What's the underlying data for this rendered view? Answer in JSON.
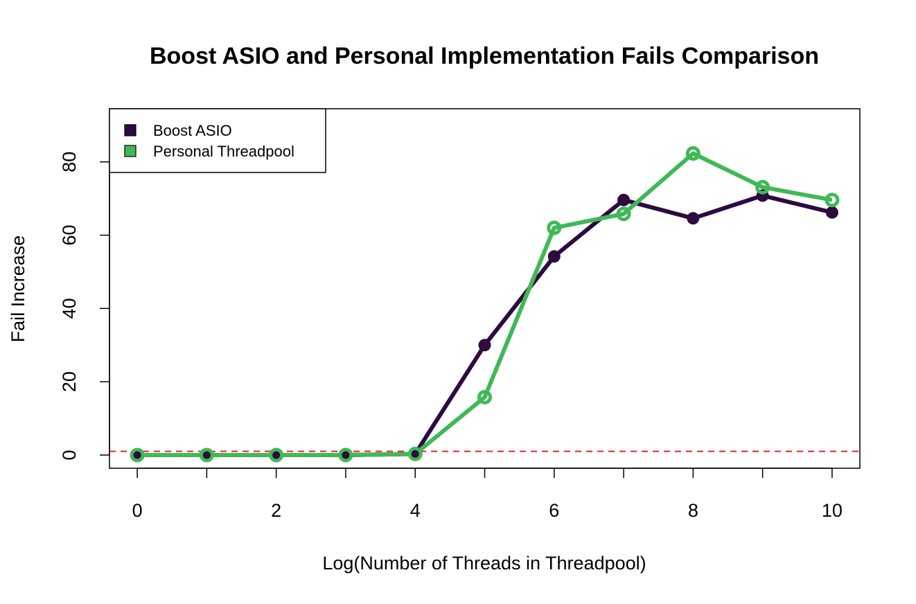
{
  "chart_data": {
    "type": "line",
    "title": "Boost ASIO and Personal Implementation Fails Comparison",
    "xlabel": "Log(Number of Threads in Threadpool)",
    "ylabel": "Fail Increase",
    "xlim": [
      -0.4,
      10.4
    ],
    "ylim": [
      -3.6,
      94.5
    ],
    "x_ticks": [
      0,
      2,
      4,
      6,
      8,
      10
    ],
    "y_ticks": [
      0,
      20,
      40,
      60,
      80
    ],
    "grid": false,
    "legend_position": "top-left",
    "reference_line": {
      "y": 1,
      "style": "dashed",
      "color": "#e8202a"
    },
    "x": [
      0,
      1,
      2,
      3,
      4,
      5,
      6,
      7,
      8,
      9,
      10
    ],
    "series": [
      {
        "name": "Boost ASIO",
        "color": "#2d0a3f",
        "marker": "filled-circle",
        "values": [
          0,
          0,
          0,
          0,
          0.3,
          30,
          54.2,
          69.6,
          64.6,
          70.8,
          66.2
        ]
      },
      {
        "name": "Personal Threadpool",
        "color": "#40b857",
        "marker": "open-circle",
        "values": [
          0,
          0,
          0,
          0,
          0.3,
          15.8,
          62,
          65.8,
          82.3,
          73.1,
          69.6
        ]
      }
    ]
  }
}
